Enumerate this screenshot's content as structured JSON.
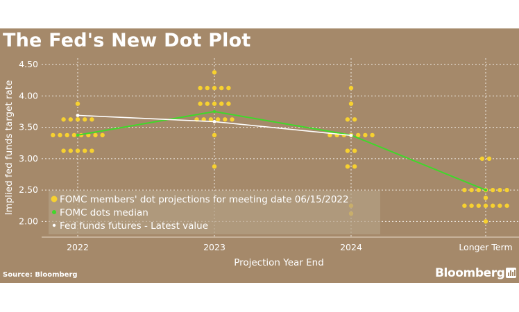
{
  "header": {
    "title": "The Fed's New Dot Plot"
  },
  "footer": {
    "source": "Source: Bloomberg",
    "brand": "Bloomberg"
  },
  "colors": {
    "background": "#a5896a",
    "dot": "#f7d130",
    "median": "#40d82a",
    "futures": "#ffffff",
    "grid": "#ffffff"
  },
  "chart_data": {
    "type": "scatter",
    "title": "The Fed's New Dot Plot",
    "xlabel": "Projection Year End",
    "ylabel": "Implied fed funds target rate",
    "categories": [
      "2022",
      "2023",
      "2024",
      "Longer Term"
    ],
    "ylim": [
      1.75,
      4.6
    ],
    "yticks": [
      2.0,
      2.5,
      3.0,
      3.5,
      4.0,
      4.5
    ],
    "ytick_labels": [
      "2.00",
      "2.50",
      "3.00",
      "3.50",
      "4.00",
      "4.50"
    ],
    "grid": true,
    "legend_position": "bottom-left",
    "legend": [
      "FOMC members' dot projections for meeting date 06/15/2022",
      "FOMC dots median",
      "Fed funds futures - Latest value"
    ],
    "dots": [
      {
        "category": "2022",
        "counts": {
          "3.875": 1,
          "3.625": 5,
          "3.375": 8,
          "3.125": 5
        }
      },
      {
        "category": "2023",
        "counts": {
          "4.375": 1,
          "4.125": 5,
          "3.875": 5,
          "3.625": 6,
          "3.375": 1,
          "2.875": 1
        }
      },
      {
        "category": "2024",
        "counts": {
          "4.125": 1,
          "3.875": 1,
          "3.625": 2,
          "3.375": 7,
          "3.125": 2,
          "2.875": 2,
          "2.25": 1,
          "2.125": 1
        }
      },
      {
        "category": "Longer Term",
        "counts": {
          "3.0": 2,
          "2.5": 7,
          "2.375": 1,
          "2.25": 7,
          "2.0": 1
        }
      }
    ],
    "series": [
      {
        "name": "FOMC dots median",
        "values": [
          3.375,
          3.75,
          3.375,
          2.5
        ]
      },
      {
        "name": "Fed funds futures - Latest value",
        "values": [
          3.69,
          3.59,
          3.37,
          null
        ]
      }
    ]
  }
}
